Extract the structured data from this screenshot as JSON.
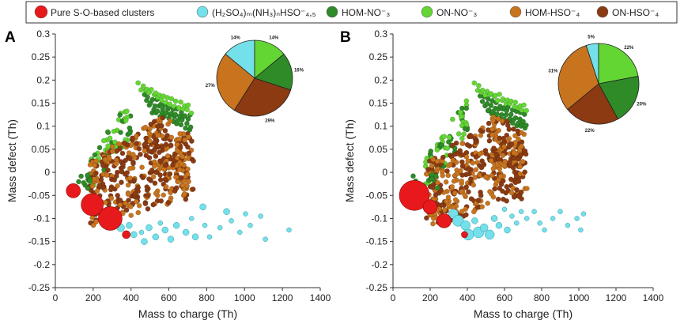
{
  "legend": [
    {
      "key": "pure",
      "label": "Pure S-O-based clusters",
      "color": "#e8191c"
    },
    {
      "key": "hso",
      "label": "(H₂SO₄)ₘ(NH₃)ₙHSO⁻₄,₅",
      "color": "#73e0ea"
    },
    {
      "key": "homno",
      "label": "HOM-NO⁻₃",
      "color": "#2e8b27"
    },
    {
      "key": "onno",
      "label": "ON-NO⁻₃",
      "color": "#63d634"
    },
    {
      "key": "homhso",
      "label": "HOM-HSO⁻₄",
      "color": "#c8741e"
    },
    {
      "key": "onhso",
      "label": "ON-HSO⁻₄",
      "color": "#8b3a12"
    }
  ],
  "chart_data": [
    {
      "panel": "A",
      "type": "scatter",
      "xlabel": "Mass to charge (Th)",
      "ylabel": "Mass defect (Th)",
      "xlim": [
        0,
        1400
      ],
      "ylim": [
        -0.25,
        0.3
      ],
      "xticks": [
        "0",
        "200",
        "400",
        "600",
        "800",
        "1000",
        "1200",
        "1400"
      ],
      "yticks": [
        "-0.25",
        "-0.2",
        "-0.15",
        "-0.1",
        "-0.05",
        "0",
        "0.05",
        "0.1",
        "0.15",
        "0.2",
        "0.25",
        "0.3"
      ],
      "pure": [
        [
          95,
          -0.04,
          9
        ],
        [
          195,
          -0.07,
          14
        ],
        [
          290,
          -0.1,
          15
        ],
        [
          375,
          -0.135,
          5
        ]
      ],
      "hso": [
        [
          335,
          -0.105,
          4
        ],
        [
          345,
          -0.12,
          5
        ],
        [
          390,
          -0.115,
          4
        ],
        [
          415,
          -0.135,
          4
        ],
        [
          455,
          -0.13,
          3
        ],
        [
          470,
          -0.15,
          4
        ],
        [
          495,
          -0.12,
          4
        ],
        [
          530,
          -0.14,
          4
        ],
        [
          555,
          -0.11,
          3
        ],
        [
          580,
          -0.125,
          4
        ],
        [
          610,
          -0.145,
          4
        ],
        [
          640,
          -0.115,
          4
        ],
        [
          690,
          -0.13,
          4
        ],
        [
          720,
          -0.1,
          3
        ],
        [
          740,
          -0.14,
          4
        ],
        [
          780,
          -0.075,
          4
        ],
        [
          790,
          -0.115,
          3
        ],
        [
          815,
          -0.14,
          3
        ],
        [
          870,
          -0.12,
          3
        ],
        [
          905,
          -0.085,
          4
        ],
        [
          930,
          -0.105,
          3
        ],
        [
          975,
          -0.13,
          3
        ],
        [
          1005,
          -0.09,
          3
        ],
        [
          1030,
          -0.115,
          3
        ],
        [
          1085,
          -0.095,
          3
        ],
        [
          1110,
          -0.145,
          3
        ],
        [
          1235,
          -0.125,
          3
        ]
      ],
      "pie": [
        {
          "label": "14%",
          "value": 14,
          "series": "hso"
        },
        {
          "label": "14%",
          "value": 14,
          "series": "onno"
        },
        {
          "label": "16%",
          "value": 16,
          "series": "homno"
        },
        {
          "label": "29%",
          "value": 29,
          "series": "onhso"
        },
        {
          "label": "27%",
          "value": 27,
          "series": "homhso"
        }
      ]
    },
    {
      "panel": "B",
      "type": "scatter",
      "xlabel": "Mass to charge (Th)",
      "ylabel": "Mass defect (Th)",
      "xlim": [
        0,
        1400
      ],
      "ylim": [
        -0.25,
        0.3
      ],
      "xticks": [
        "0",
        "200",
        "400",
        "600",
        "800",
        "1000",
        "1200",
        "1400"
      ],
      "yticks": [
        "-0.25",
        "-0.2",
        "-0.15",
        "-0.1",
        "-0.05",
        "0",
        "0.05",
        "0.1",
        "0.15",
        "0.2",
        "0.25",
        "0.3"
      ],
      "pure": [
        [
          115,
          -0.05,
          19
        ],
        [
          200,
          -0.075,
          9
        ],
        [
          275,
          -0.105,
          9
        ],
        [
          385,
          -0.135,
          4
        ]
      ],
      "hso": [
        [
          325,
          -0.09,
          6
        ],
        [
          350,
          -0.105,
          7
        ],
        [
          390,
          -0.115,
          6
        ],
        [
          405,
          -0.135,
          7
        ],
        [
          440,
          -0.105,
          4
        ],
        [
          460,
          -0.13,
          7
        ],
        [
          490,
          -0.12,
          5
        ],
        [
          520,
          -0.135,
          6
        ],
        [
          545,
          -0.1,
          4
        ],
        [
          570,
          -0.115,
          4
        ],
        [
          600,
          -0.08,
          3
        ],
        [
          615,
          -0.125,
          4
        ],
        [
          640,
          -0.095,
          3
        ],
        [
          665,
          -0.11,
          3
        ],
        [
          690,
          -0.085,
          3
        ],
        [
          720,
          -0.1,
          3
        ],
        [
          760,
          -0.085,
          3
        ],
        [
          790,
          -0.11,
          3
        ],
        [
          815,
          -0.125,
          3
        ],
        [
          860,
          -0.1,
          3
        ],
        [
          900,
          -0.085,
          3
        ],
        [
          940,
          -0.115,
          3
        ],
        [
          990,
          -0.1,
          3
        ],
        [
          1010,
          -0.125,
          3
        ],
        [
          1025,
          -0.09,
          3
        ]
      ],
      "pie": [
        {
          "label": "5%",
          "value": 5,
          "series": "hso"
        },
        {
          "label": "22%",
          "value": 22,
          "series": "onno"
        },
        {
          "label": "20%",
          "value": 20,
          "series": "homno"
        },
        {
          "label": "22%",
          "value": 22,
          "series": "onhso"
        },
        {
          "label": "31%",
          "value": 31,
          "series": "homhso"
        }
      ]
    }
  ]
}
